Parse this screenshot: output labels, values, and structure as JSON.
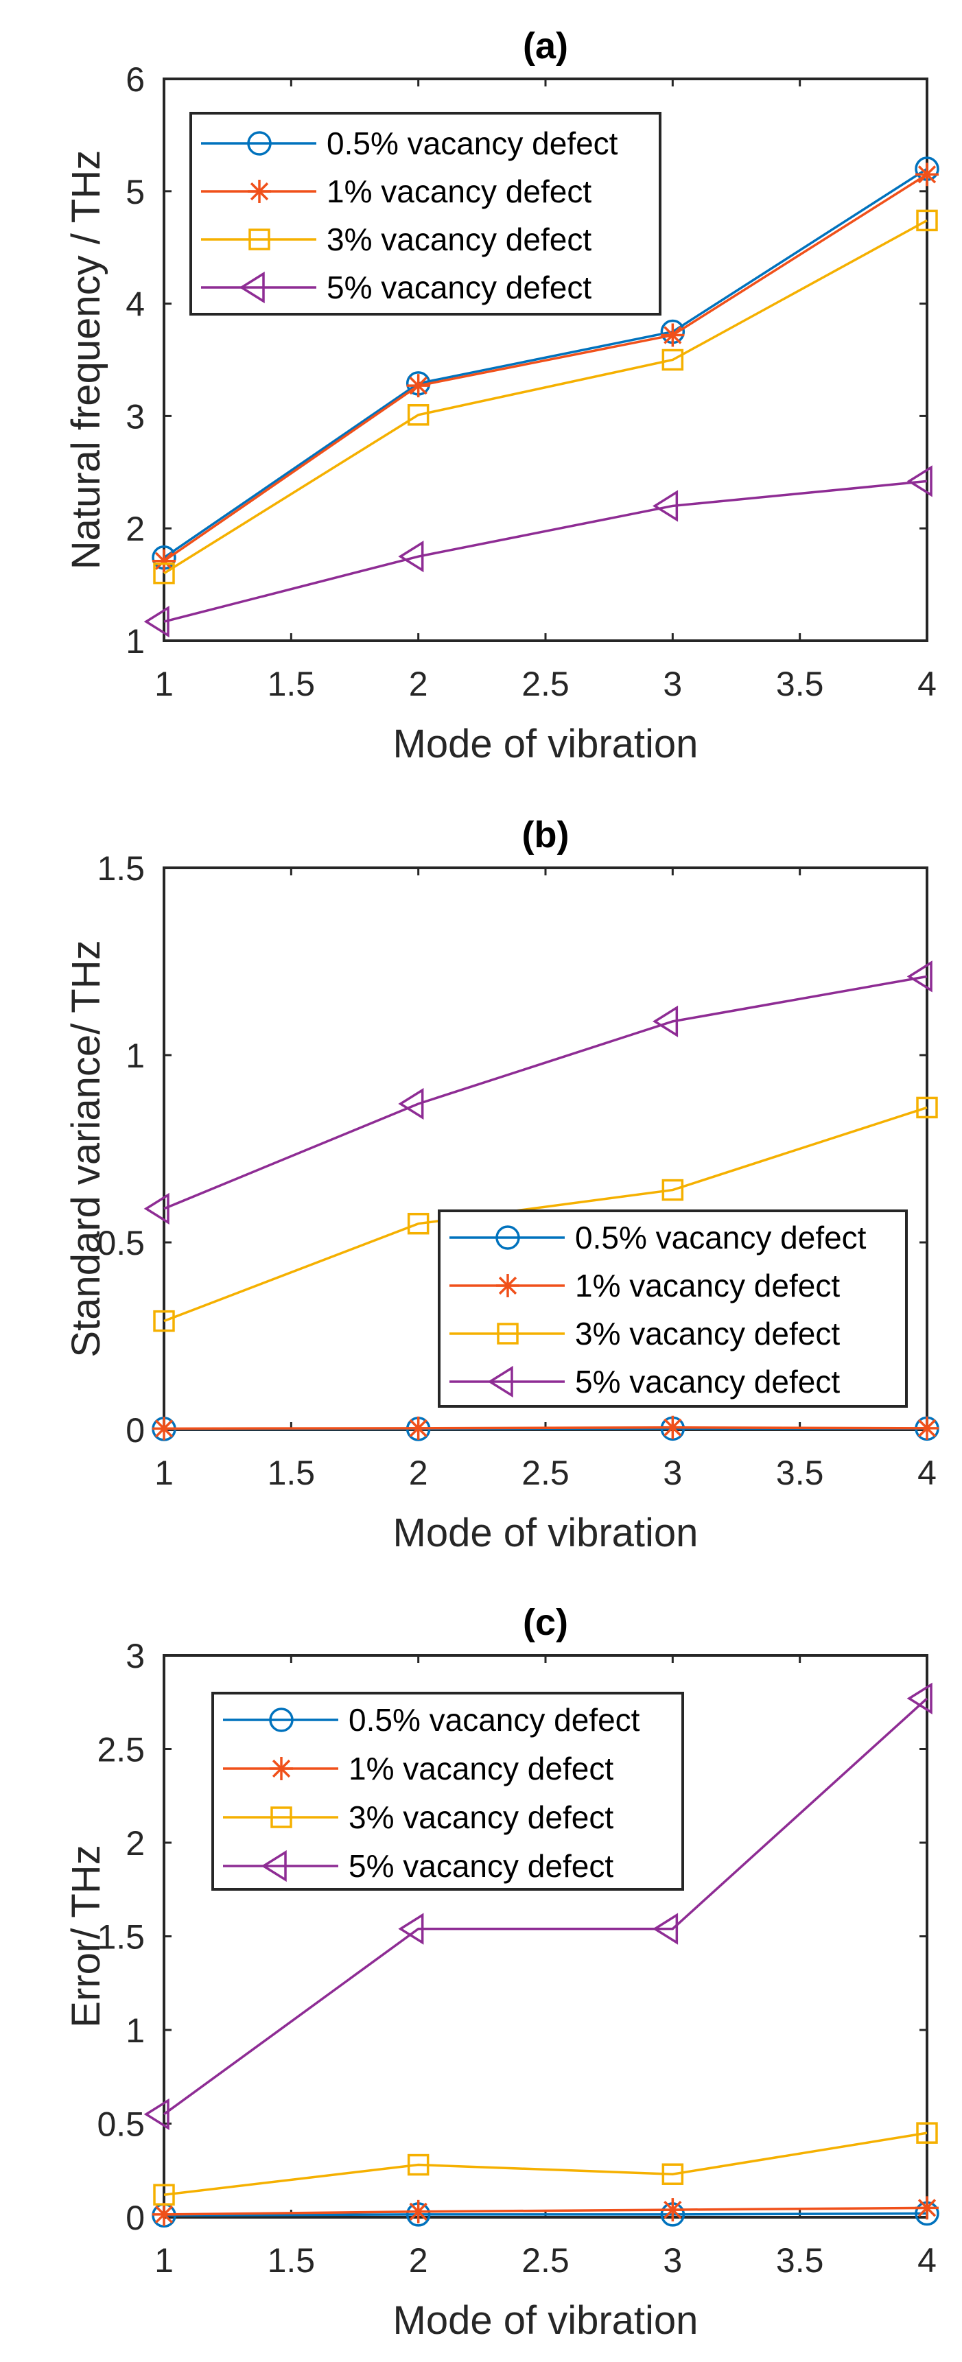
{
  "chart_data": [
    {
      "type": "line",
      "title": "(a)",
      "xlabel": "Mode of vibration",
      "ylabel": "Natural frequency / THz",
      "xlim": [
        1,
        4
      ],
      "ylim": [
        1,
        6
      ],
      "xticks": [
        "1",
        "1.5",
        "2",
        "2.5",
        "3",
        "3.5",
        "4"
      ],
      "yticks": [
        "1",
        "2",
        "3",
        "4",
        "5",
        "6"
      ],
      "grid": false,
      "legend_position": "top-left",
      "x": [
        1,
        2,
        3,
        4
      ],
      "series": [
        {
          "name": "0.5% vacancy defect",
          "marker": "circle",
          "color": "#0072BD",
          "values": [
            1.74,
            3.29,
            3.75,
            5.2
          ]
        },
        {
          "name": "1% vacancy defect",
          "marker": "asterisk",
          "color": "#F0501A",
          "values": [
            1.71,
            3.27,
            3.72,
            5.15
          ]
        },
        {
          "name": "3% vacancy defect",
          "marker": "square",
          "color": "#F5B000",
          "values": [
            1.6,
            3.01,
            3.5,
            4.74
          ]
        },
        {
          "name": "5% vacancy defect",
          "marker": "triangle-left",
          "color": "#8E2C94",
          "values": [
            1.17,
            1.75,
            2.2,
            2.42
          ]
        }
      ]
    },
    {
      "type": "line",
      "title": "(b)",
      "xlabel": "Mode of vibration",
      "ylabel": "Standard variance/ THz",
      "xlim": [
        1,
        4
      ],
      "ylim": [
        0,
        1.5
      ],
      "xticks": [
        "1",
        "1.5",
        "2",
        "2.5",
        "3",
        "3.5",
        "4"
      ],
      "yticks": [
        "0",
        "0.5",
        "1",
        "1.5"
      ],
      "grid": false,
      "legend_position": "bottom-right",
      "x": [
        1,
        2,
        3,
        4
      ],
      "series": [
        {
          "name": "0.5% vacancy defect",
          "marker": "circle",
          "color": "#0072BD",
          "values": [
            0.002,
            0.002,
            0.003,
            0.003
          ]
        },
        {
          "name": "1% vacancy defect",
          "marker": "asterisk",
          "color": "#F0501A",
          "values": [
            0.003,
            0.004,
            0.006,
            0.004
          ]
        },
        {
          "name": "3% vacancy defect",
          "marker": "square",
          "color": "#F5B000",
          "values": [
            0.29,
            0.55,
            0.64,
            0.86
          ]
        },
        {
          "name": "5% vacancy defect",
          "marker": "triangle-left",
          "color": "#8E2C94",
          "values": [
            0.59,
            0.87,
            1.09,
            1.21
          ]
        }
      ]
    },
    {
      "type": "line",
      "title": "(c)",
      "xlabel": "Mode of vibration",
      "ylabel": "Error/ THz",
      "xlim": [
        1,
        4
      ],
      "ylim": [
        0,
        3
      ],
      "xticks": [
        "1",
        "1.5",
        "2",
        "2.5",
        "3",
        "3.5",
        "4"
      ],
      "yticks": [
        "0",
        "0.5",
        "1",
        "1.5",
        "2",
        "2.5",
        "3"
      ],
      "grid": false,
      "legend_position": "top-left",
      "x": [
        1,
        2,
        3,
        4
      ],
      "series": [
        {
          "name": "0.5% vacancy defect",
          "marker": "circle",
          "color": "#0072BD",
          "values": [
            0.01,
            0.015,
            0.015,
            0.02
          ]
        },
        {
          "name": "1% vacancy defect",
          "marker": "asterisk",
          "color": "#F0501A",
          "values": [
            0.015,
            0.03,
            0.04,
            0.05
          ]
        },
        {
          "name": "3% vacancy defect",
          "marker": "square",
          "color": "#F5B000",
          "values": [
            0.12,
            0.28,
            0.23,
            0.45
          ]
        },
        {
          "name": "5% vacancy defect",
          "marker": "triangle-left",
          "color": "#8E2C94",
          "values": [
            0.55,
            1.54,
            1.54,
            2.77
          ]
        }
      ]
    }
  ]
}
